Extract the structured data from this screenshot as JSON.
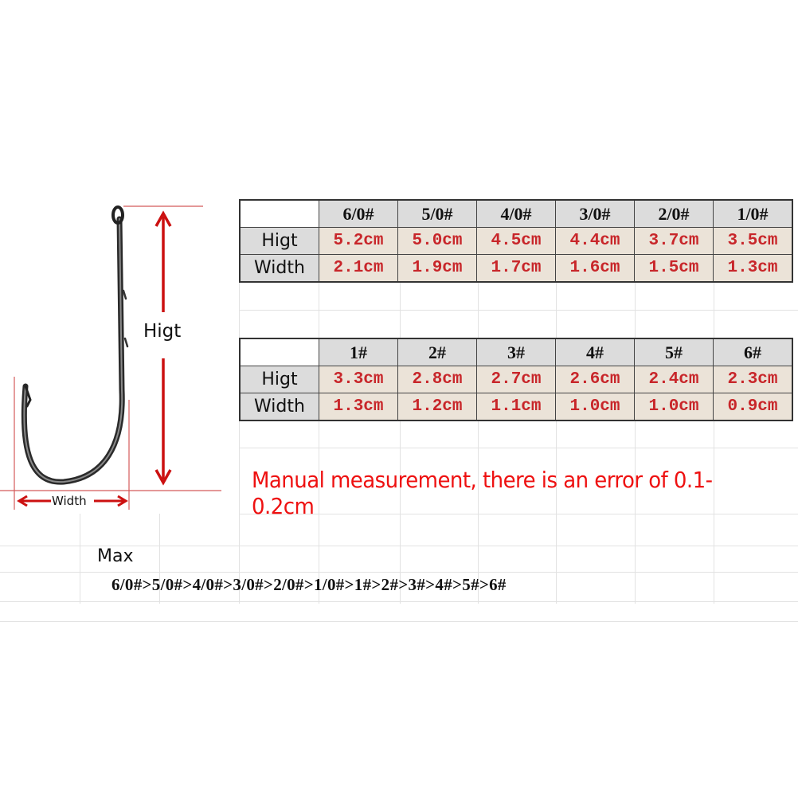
{
  "diagram": {
    "height_label": "Higt",
    "width_label": "Width",
    "arrow_color": "#cc1111"
  },
  "table1": {
    "headers": [
      "6/0#",
      "5/0#",
      "4/0#",
      "3/0#",
      "2/0#",
      "1/0#"
    ],
    "rows": [
      {
        "label": "Higt",
        "values": [
          "5.2cm",
          "5.0cm",
          "4.5cm",
          "4.4cm",
          "3.7cm",
          "3.5cm"
        ]
      },
      {
        "label": "Width",
        "values": [
          "2.1cm",
          "1.9cm",
          "1.7cm",
          "1.6cm",
          "1.5cm",
          "1.3cm"
        ]
      }
    ]
  },
  "table2": {
    "headers": [
      "1#",
      "2#",
      "3#",
      "4#",
      "5#",
      "6#"
    ],
    "rows": [
      {
        "label": "Higt",
        "values": [
          "3.3cm",
          "2.8cm",
          "2.7cm",
          "2.6cm",
          "2.4cm",
          "2.3cm"
        ]
      },
      {
        "label": "Width",
        "values": [
          "1.3cm",
          "1.2cm",
          "1.1cm",
          "1.0cm",
          "1.0cm",
          "0.9cm"
        ]
      }
    ]
  },
  "note": "Manual measurement, there is an error of 0.1-0.2cm",
  "max_label": "Max",
  "size_order": "6/0#>5/0#>4/0#>3/0#>2/0#>1/0#>1#>2#>3#>4#>5#>6#",
  "colors": {
    "value_text": "#c8262a",
    "note_text": "#ee1111",
    "header_bg": "#dcdcdc",
    "value_bg": "#ebe3d8"
  }
}
